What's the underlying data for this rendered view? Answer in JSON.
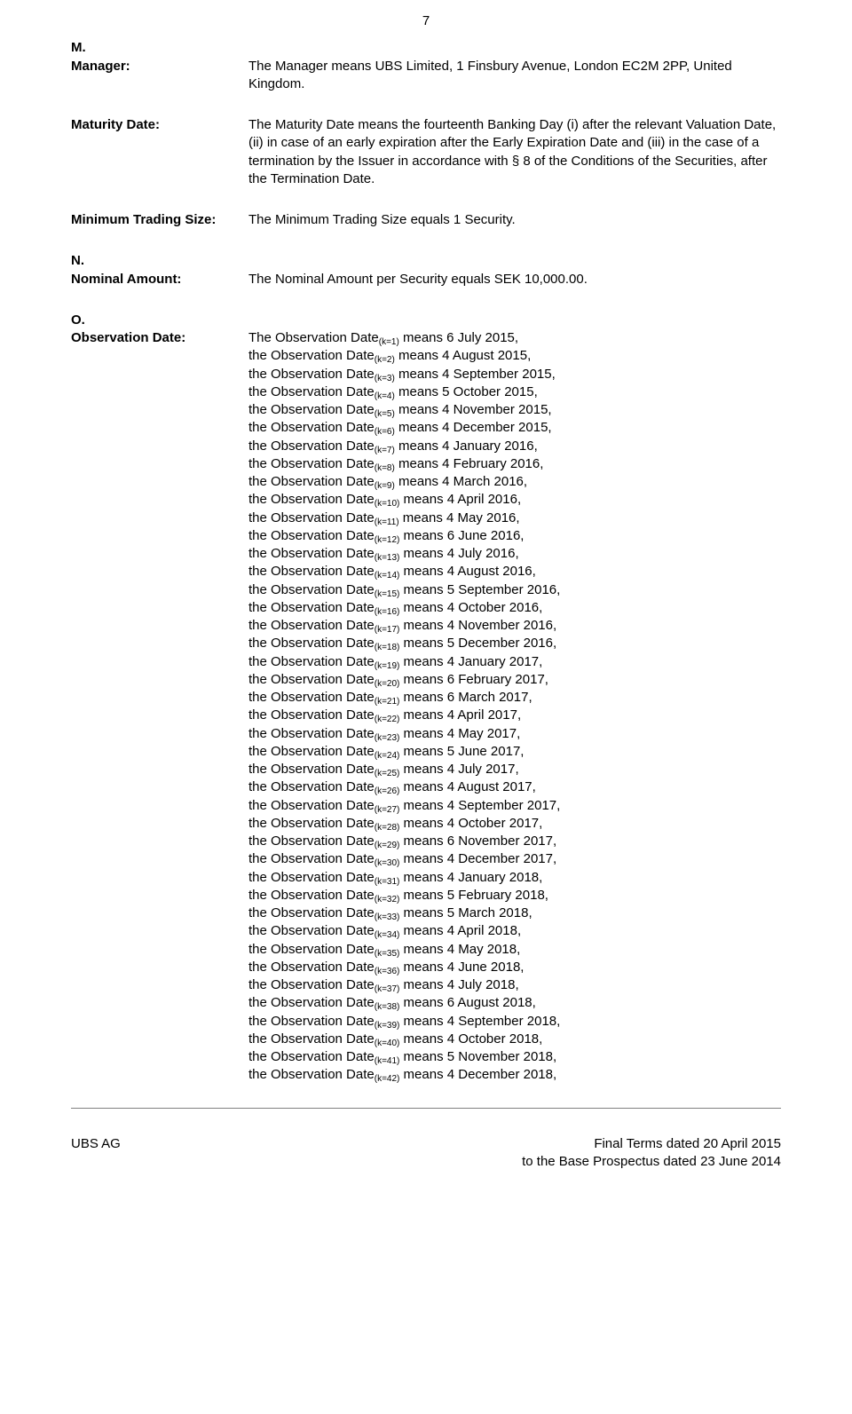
{
  "pageNumber": "7",
  "sections": {
    "m": {
      "letter": "M.",
      "term": "Manager:",
      "def": "The Manager means UBS Limited, 1 Finsbury Avenue, London EC2M 2PP, United Kingdom."
    },
    "maturity": {
      "term": "Maturity Date:",
      "def": "The Maturity Date means the fourteenth Banking Day (i) after the relevant Valuation Date, (ii) in case of an early expiration after the Early Expiration Date and (iii) in the case of a termination by the Issuer in accordance with § 8 of the Conditions of the Securities, after the Termination Date."
    },
    "mts": {
      "term": "Minimum Trading Size:",
      "def": "The Minimum Trading Size equals 1 Security."
    },
    "n": {
      "letter": "N.",
      "term": "Nominal Amount:",
      "def": "The Nominal Amount per Security equals SEK 10,000.00."
    },
    "o": {
      "letter": "O.",
      "term": "Observation Date:",
      "first": {
        "k": "(k=1)",
        "date": "6 July 2015"
      },
      "rest": [
        {
          "k": "(k=2)",
          "date": "4 August 2015"
        },
        {
          "k": "(k=3)",
          "date": "4 September 2015"
        },
        {
          "k": "(k=4)",
          "date": "5 October 2015"
        },
        {
          "k": "(k=5)",
          "date": "4 November 2015"
        },
        {
          "k": "(k=6)",
          "date": "4 December 2015"
        },
        {
          "k": "(k=7)",
          "date": "4 January 2016"
        },
        {
          "k": "(k=8)",
          "date": "4 February 2016"
        },
        {
          "k": "(k=9)",
          "date": "4 March 2016"
        },
        {
          "k": "(k=10)",
          "date": "4 April 2016"
        },
        {
          "k": "(k=11)",
          "date": "4 May 2016"
        },
        {
          "k": "(k=12)",
          "date": "6 June 2016"
        },
        {
          "k": "(k=13)",
          "date": "4 July 2016"
        },
        {
          "k": "(k=14)",
          "date": "4 August 2016"
        },
        {
          "k": "(k=15)",
          "date": "5 September 2016"
        },
        {
          "k": "(k=16)",
          "date": "4 October 2016"
        },
        {
          "k": "(k=17)",
          "date": "4 November 2016"
        },
        {
          "k": "(k=18)",
          "date": "5 December 2016"
        },
        {
          "k": "(k=19)",
          "date": "4 January 2017"
        },
        {
          "k": "(k=20)",
          "date": "6 February 2017"
        },
        {
          "k": "(k=21)",
          "date": "6 March 2017"
        },
        {
          "k": "(k=22)",
          "date": "4 April 2017"
        },
        {
          "k": "(k=23)",
          "date": "4 May 2017"
        },
        {
          "k": "(k=24)",
          "date": "5 June 2017"
        },
        {
          "k": "(k=25)",
          "date": "4 July 2017"
        },
        {
          "k": "(k=26)",
          "date": "4 August 2017"
        },
        {
          "k": "(k=27)",
          "date": "4 September 2017"
        },
        {
          "k": "(k=28)",
          "date": "4 October 2017"
        },
        {
          "k": "(k=29)",
          "date": "6 November 2017"
        },
        {
          "k": "(k=30)",
          "date": "4 December 2017"
        },
        {
          "k": "(k=31)",
          "date": "4 January 2018"
        },
        {
          "k": "(k=32)",
          "date": "5 February 2018"
        },
        {
          "k": "(k=33)",
          "date": "5 March 2018"
        },
        {
          "k": "(k=34)",
          "date": "4 April 2018"
        },
        {
          "k": "(k=35)",
          "date": "4 May 2018"
        },
        {
          "k": "(k=36)",
          "date": "4 June 2018"
        },
        {
          "k": "(k=37)",
          "date": "4 July 2018"
        },
        {
          "k": "(k=38)",
          "date": "6 August 2018"
        },
        {
          "k": "(k=39)",
          "date": "4 September 2018"
        },
        {
          "k": "(k=40)",
          "date": "4 October 2018"
        },
        {
          "k": "(k=41)",
          "date": "5 November 2018"
        },
        {
          "k": "(k=42)",
          "date": "4 December 2018"
        }
      ]
    }
  },
  "footer": {
    "left": "UBS AG",
    "right1": "Final Terms dated 20 April 2015",
    "right2": "to the Base Prospectus dated 23 June 2014"
  }
}
